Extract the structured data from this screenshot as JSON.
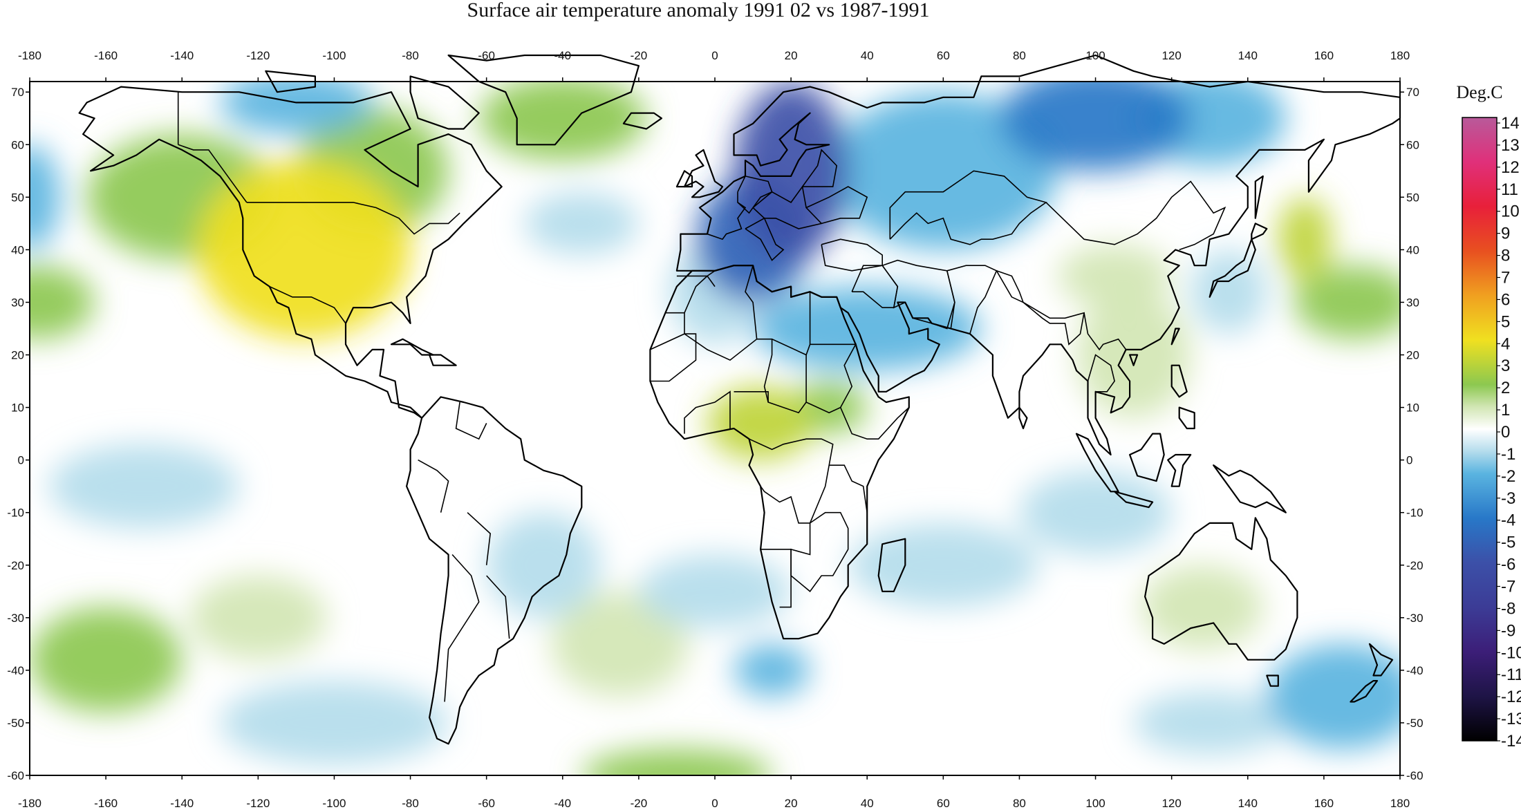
{
  "title": "Surface air temperature anomaly 1991 02 vs 1987-1991",
  "chart_data": {
    "type": "heatmap",
    "title": "Surface air temperature anomaly 1991 02 vs 1987-1991",
    "xlim": [
      -180,
      180
    ],
    "ylim": [
      -60,
      72
    ],
    "x_ticks": [
      -180,
      -160,
      -140,
      -120,
      -100,
      -80,
      -60,
      -40,
      -20,
      0,
      20,
      40,
      60,
      80,
      100,
      120,
      140,
      160,
      180
    ],
    "x_tick_labels": [
      "-180",
      "-160",
      "-140",
      "-120",
      "-100",
      "-80",
      "-60",
      "-40",
      "-20",
      "0",
      "20",
      "40",
      "60",
      "80",
      "100",
      "120",
      "140",
      "160",
      "180"
    ],
    "y_ticks": [
      70,
      60,
      50,
      40,
      30,
      20,
      10,
      0,
      -10,
      -20,
      -30,
      -40,
      -50,
      -60
    ],
    "y_tick_labels": [
      "70",
      "60",
      "50",
      "40",
      "30",
      "20",
      "10",
      "0",
      "-10",
      "-20",
      "-30",
      "-40",
      "-50",
      "-60"
    ],
    "colorbar": {
      "unit": "Deg.C",
      "min": -14,
      "max": 14,
      "labels": [
        "14",
        "13",
        "12",
        "11",
        "10",
        "9",
        "8",
        "7",
        "6",
        "5",
        "4",
        "3",
        "2",
        "1",
        "0",
        "-1",
        "-2",
        "-3",
        "-4",
        "-5",
        "-6",
        "-7",
        "-8",
        "-9",
        "-10",
        "-11",
        "-12",
        "-13",
        "-14"
      ],
      "stops": [
        {
          "value": 14,
          "color": "#b85a9a"
        },
        {
          "value": 12,
          "color": "#e0307a"
        },
        {
          "value": 10,
          "color": "#e8203a"
        },
        {
          "value": 8,
          "color": "#e85020"
        },
        {
          "value": 6,
          "color": "#f0a020"
        },
        {
          "value": 4,
          "color": "#f0e020"
        },
        {
          "value": 2,
          "color": "#8cc850"
        },
        {
          "value": 1,
          "color": "#d2e6b4"
        },
        {
          "value": 0,
          "color": "#ffffff"
        },
        {
          "value": -1,
          "color": "#b4dcec"
        },
        {
          "value": -2,
          "color": "#5ab4e0"
        },
        {
          "value": -4,
          "color": "#2878c8"
        },
        {
          "value": -6,
          "color": "#3c50a8"
        },
        {
          "value": -8,
          "color": "#3c3c96"
        },
        {
          "value": -10,
          "color": "#3c1e78"
        },
        {
          "value": -12,
          "color": "#1e1446"
        },
        {
          "value": -14,
          "color": "#000000"
        }
      ]
    },
    "anomaly_regions": [
      {
        "lon": -108,
        "lat": 40,
        "rlon": 28,
        "rlat": 17,
        "value": 4
      },
      {
        "lon": -140,
        "lat": 50,
        "rlon": 25,
        "rlat": 12,
        "value": 2
      },
      {
        "lon": -90,
        "lat": 55,
        "rlon": 20,
        "rlat": 12,
        "value": 2
      },
      {
        "lon": -40,
        "lat": 65,
        "rlon": 22,
        "rlat": 8,
        "value": 2
      },
      {
        "lon": -178,
        "lat": 30,
        "rlon": 15,
        "rlat": 7,
        "value": 2
      },
      {
        "lon": 168,
        "lat": 30,
        "rlon": 16,
        "rlat": 7,
        "value": 2
      },
      {
        "lon": 155,
        "lat": 42,
        "rlon": 7,
        "rlat": 8,
        "value": 3
      },
      {
        "lon": 12,
        "lat": 7,
        "rlon": 14,
        "rlat": 7,
        "value": 3
      },
      {
        "lon": 30,
        "lat": 10,
        "rlon": 10,
        "rlat": 5,
        "value": 2
      },
      {
        "lon": 110,
        "lat": 20,
        "rlon": 15,
        "rlat": 12,
        "value": 1
      },
      {
        "lon": 105,
        "lat": 35,
        "rlon": 15,
        "rlat": 6,
        "value": 1
      },
      {
        "lon": 128,
        "lat": -28,
        "rlon": 16,
        "rlat": 8,
        "value": 1
      },
      {
        "lon": -160,
        "lat": -38,
        "rlon": 20,
        "rlat": 10,
        "value": 2
      },
      {
        "lon": -120,
        "lat": -30,
        "rlon": 18,
        "rlat": 8,
        "value": 1
      },
      {
        "lon": -25,
        "lat": -35,
        "rlon": 18,
        "rlat": 10,
        "value": 1
      },
      {
        "lon": -10,
        "lat": -60,
        "rlon": 25,
        "rlat": 5,
        "value": 2
      },
      {
        "lon": 20,
        "lat": 55,
        "rlon": 15,
        "rlat": 17,
        "value": -6
      },
      {
        "lon": 10,
        "lat": 42,
        "rlon": 15,
        "rlat": 12,
        "value": -5
      },
      {
        "lon": 60,
        "lat": 55,
        "rlon": 30,
        "rlat": 15,
        "value": -2
      },
      {
        "lon": 100,
        "lat": 65,
        "rlon": 25,
        "rlat": 10,
        "value": -4
      },
      {
        "lon": 130,
        "lat": 65,
        "rlon": 20,
        "rlat": 9,
        "value": -2
      },
      {
        "lon": -110,
        "lat": 68,
        "rlon": 20,
        "rlat": 6,
        "value": -2
      },
      {
        "lon": -180,
        "lat": 50,
        "rlon": 8,
        "rlat": 10,
        "value": -2
      },
      {
        "lon": 40,
        "lat": 25,
        "rlon": 30,
        "rlat": 8,
        "value": -2
      },
      {
        "lon": 0,
        "lat": 32,
        "rlon": 12,
        "rlat": 10,
        "value": -1
      },
      {
        "lon": 135,
        "lat": 32,
        "rlon": 10,
        "rlat": 8,
        "value": -1
      },
      {
        "lon": 165,
        "lat": -45,
        "rlon": 20,
        "rlat": 10,
        "value": -2
      },
      {
        "lon": 130,
        "lat": -50,
        "rlon": 20,
        "rlat": 6,
        "value": -1
      },
      {
        "lon": -100,
        "lat": -50,
        "rlon": 30,
        "rlat": 8,
        "value": -1
      },
      {
        "lon": -45,
        "lat": -20,
        "rlon": 15,
        "rlat": 10,
        "value": -1
      },
      {
        "lon": 15,
        "lat": -40,
        "rlon": 10,
        "rlat": 5,
        "value": -2
      },
      {
        "lon": 0,
        "lat": -25,
        "rlon": 20,
        "rlat": 7,
        "value": -1
      },
      {
        "lon": 60,
        "lat": -20,
        "rlon": 25,
        "rlat": 8,
        "value": -1
      },
      {
        "lon": -150,
        "lat": -5,
        "rlon": 25,
        "rlat": 8,
        "value": -1
      },
      {
        "lon": 100,
        "lat": -10,
        "rlon": 20,
        "rlat": 8,
        "value": -1
      },
      {
        "lon": -35,
        "lat": 45,
        "rlon": 15,
        "rlat": 6,
        "value": -1
      }
    ]
  }
}
